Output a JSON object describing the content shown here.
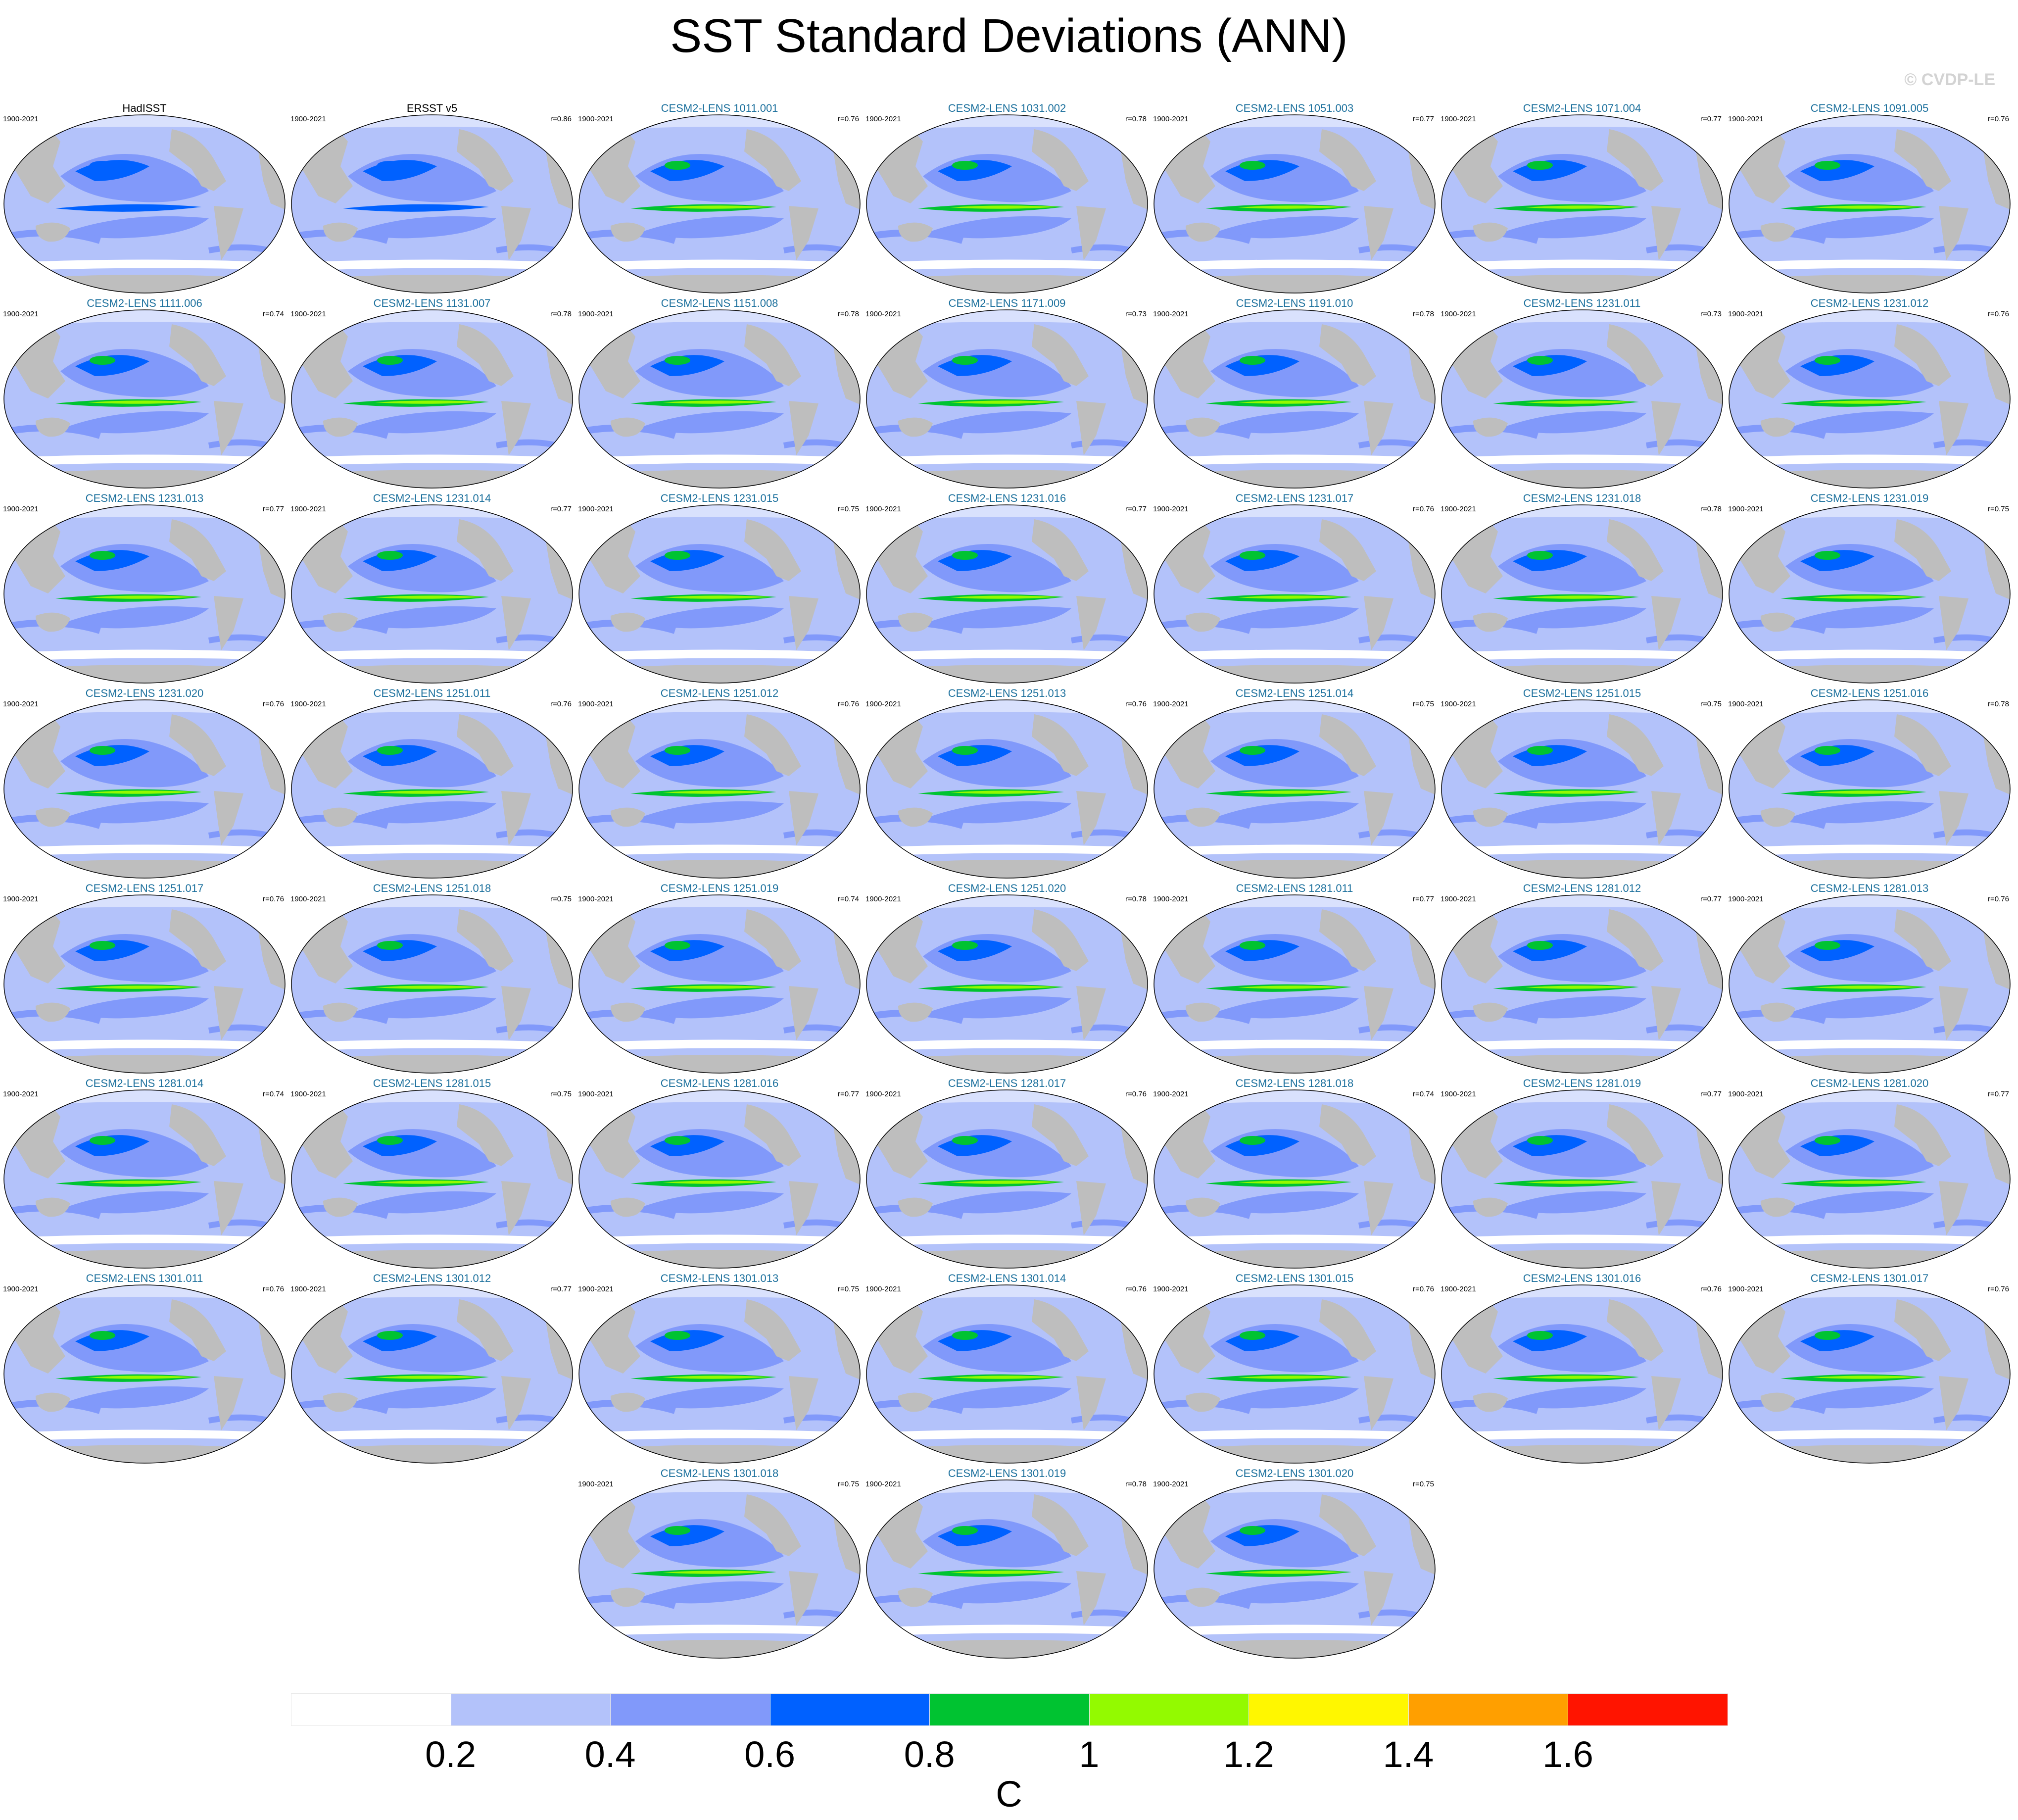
{
  "title": "SST Standard Deviations (ANN)",
  "credit": "© CVDP-LE",
  "panels": [
    {
      "title": "HadISST",
      "years": "1900-2021",
      "corr": "",
      "obs": true
    },
    {
      "title": "ERSST v5",
      "years": "1900-2021",
      "corr": "r=0.86",
      "obs": true
    },
    {
      "title": "CESM2-LENS 1011.001",
      "years": "1900-2021",
      "corr": "r=0.76"
    },
    {
      "title": "CESM2-LENS 1031.002",
      "years": "1900-2021",
      "corr": "r=0.78"
    },
    {
      "title": "CESM2-LENS 1051.003",
      "years": "1900-2021",
      "corr": "r=0.77"
    },
    {
      "title": "CESM2-LENS 1071.004",
      "years": "1900-2021",
      "corr": "r=0.77"
    },
    {
      "title": "CESM2-LENS 1091.005",
      "years": "1900-2021",
      "corr": "r=0.76"
    },
    {
      "title": "CESM2-LENS 1111.006",
      "years": "1900-2021",
      "corr": "r=0.74"
    },
    {
      "title": "CESM2-LENS 1131.007",
      "years": "1900-2021",
      "corr": "r=0.78"
    },
    {
      "title": "CESM2-LENS 1151.008",
      "years": "1900-2021",
      "corr": "r=0.78"
    },
    {
      "title": "CESM2-LENS 1171.009",
      "years": "1900-2021",
      "corr": "r=0.73"
    },
    {
      "title": "CESM2-LENS 1191.010",
      "years": "1900-2021",
      "corr": "r=0.78"
    },
    {
      "title": "CESM2-LENS 1231.011",
      "years": "1900-2021",
      "corr": "r=0.73"
    },
    {
      "title": "CESM2-LENS 1231.012",
      "years": "1900-2021",
      "corr": "r=0.76"
    },
    {
      "title": "CESM2-LENS 1231.013",
      "years": "1900-2021",
      "corr": "r=0.77"
    },
    {
      "title": "CESM2-LENS 1231.014",
      "years": "1900-2021",
      "corr": "r=0.77"
    },
    {
      "title": "CESM2-LENS 1231.015",
      "years": "1900-2021",
      "corr": "r=0.75"
    },
    {
      "title": "CESM2-LENS 1231.016",
      "years": "1900-2021",
      "corr": "r=0.77"
    },
    {
      "title": "CESM2-LENS 1231.017",
      "years": "1900-2021",
      "corr": "r=0.76"
    },
    {
      "title": "CESM2-LENS 1231.018",
      "years": "1900-2021",
      "corr": "r=0.78"
    },
    {
      "title": "CESM2-LENS 1231.019",
      "years": "1900-2021",
      "corr": "r=0.75"
    },
    {
      "title": "CESM2-LENS 1231.020",
      "years": "1900-2021",
      "corr": "r=0.76"
    },
    {
      "title": "CESM2-LENS 1251.011",
      "years": "1900-2021",
      "corr": "r=0.76"
    },
    {
      "title": "CESM2-LENS 1251.012",
      "years": "1900-2021",
      "corr": "r=0.76"
    },
    {
      "title": "CESM2-LENS 1251.013",
      "years": "1900-2021",
      "corr": "r=0.76"
    },
    {
      "title": "CESM2-LENS 1251.014",
      "years": "1900-2021",
      "corr": "r=0.75"
    },
    {
      "title": "CESM2-LENS 1251.015",
      "years": "1900-2021",
      "corr": "r=0.75"
    },
    {
      "title": "CESM2-LENS 1251.016",
      "years": "1900-2021",
      "corr": "r=0.78"
    },
    {
      "title": "CESM2-LENS 1251.017",
      "years": "1900-2021",
      "corr": "r=0.76"
    },
    {
      "title": "CESM2-LENS 1251.018",
      "years": "1900-2021",
      "corr": "r=0.75"
    },
    {
      "title": "CESM2-LENS 1251.019",
      "years": "1900-2021",
      "corr": "r=0.74"
    },
    {
      "title": "CESM2-LENS 1251.020",
      "years": "1900-2021",
      "corr": "r=0.78"
    },
    {
      "title": "CESM2-LENS 1281.011",
      "years": "1900-2021",
      "corr": "r=0.77"
    },
    {
      "title": "CESM2-LENS 1281.012",
      "years": "1900-2021",
      "corr": "r=0.77"
    },
    {
      "title": "CESM2-LENS 1281.013",
      "years": "1900-2021",
      "corr": "r=0.76"
    },
    {
      "title": "CESM2-LENS 1281.014",
      "years": "1900-2021",
      "corr": "r=0.74"
    },
    {
      "title": "CESM2-LENS 1281.015",
      "years": "1900-2021",
      "corr": "r=0.75"
    },
    {
      "title": "CESM2-LENS 1281.016",
      "years": "1900-2021",
      "corr": "r=0.77"
    },
    {
      "title": "CESM2-LENS 1281.017",
      "years": "1900-2021",
      "corr": "r=0.76"
    },
    {
      "title": "CESM2-LENS 1281.018",
      "years": "1900-2021",
      "corr": "r=0.74"
    },
    {
      "title": "CESM2-LENS 1281.019",
      "years": "1900-2021",
      "corr": "r=0.77"
    },
    {
      "title": "CESM2-LENS 1281.020",
      "years": "1900-2021",
      "corr": "r=0.77"
    },
    {
      "title": "CESM2-LENS 1301.011",
      "years": "1900-2021",
      "corr": "r=0.76"
    },
    {
      "title": "CESM2-LENS 1301.012",
      "years": "1900-2021",
      "corr": "r=0.77"
    },
    {
      "title": "CESM2-LENS 1301.013",
      "years": "1900-2021",
      "corr": "r=0.75"
    },
    {
      "title": "CESM2-LENS 1301.014",
      "years": "1900-2021",
      "corr": "r=0.76"
    },
    {
      "title": "CESM2-LENS 1301.015",
      "years": "1900-2021",
      "corr": "r=0.76"
    },
    {
      "title": "CESM2-LENS 1301.016",
      "years": "1900-2021",
      "corr": "r=0.76"
    },
    {
      "title": "CESM2-LENS 1301.017",
      "years": "1900-2021",
      "corr": "r=0.76"
    },
    {
      "title": "CESM2-LENS 1301.018",
      "years": "1900-2021",
      "corr": "r=0.75"
    },
    {
      "title": "CESM2-LENS 1301.019",
      "years": "1900-2021",
      "corr": "r=0.78"
    },
    {
      "title": "CESM2-LENS 1301.020",
      "years": "1900-2021",
      "corr": "r=0.75"
    }
  ],
  "colorbar": {
    "unit": "C",
    "labels": [
      "0.2",
      "0.4",
      "0.6",
      "0.8",
      "1",
      "1.2",
      "1.4",
      "1.6"
    ],
    "colors": [
      "#ffffff",
      "#b3c2fa",
      "#8199fa",
      "#0061ff",
      "#00c331",
      "#93fa00",
      "#fff700",
      "#ff9f00",
      "#ff1400"
    ]
  },
  "map_colors": {
    "land": "#bebebe",
    "ocean_low": "#b3c2fa",
    "ocean_mid": "#8199fa",
    "ocean_high": "#0061ff",
    "enso_core": "#00c331",
    "enso_peak": "#93fa00",
    "ice": "#ffffff"
  }
}
